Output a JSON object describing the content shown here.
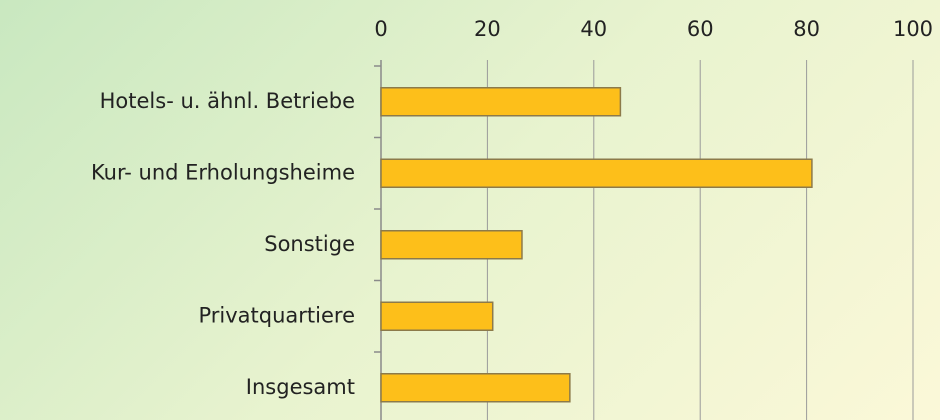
{
  "chart_data": {
    "type": "bar",
    "orientation": "horizontal",
    "categories": [
      "Hotels- u. ähnl. Betriebe",
      "Kur- und Erholungsheime",
      "Sonstige",
      "Privatquartiere",
      "Insgesamt"
    ],
    "values": [
      45,
      81,
      26.5,
      21,
      35.5
    ],
    "color": "#fdbf1a",
    "xlim": [
      0,
      100
    ],
    "xticks": [
      0,
      20,
      40,
      60,
      80,
      100
    ],
    "grid": true
  }
}
